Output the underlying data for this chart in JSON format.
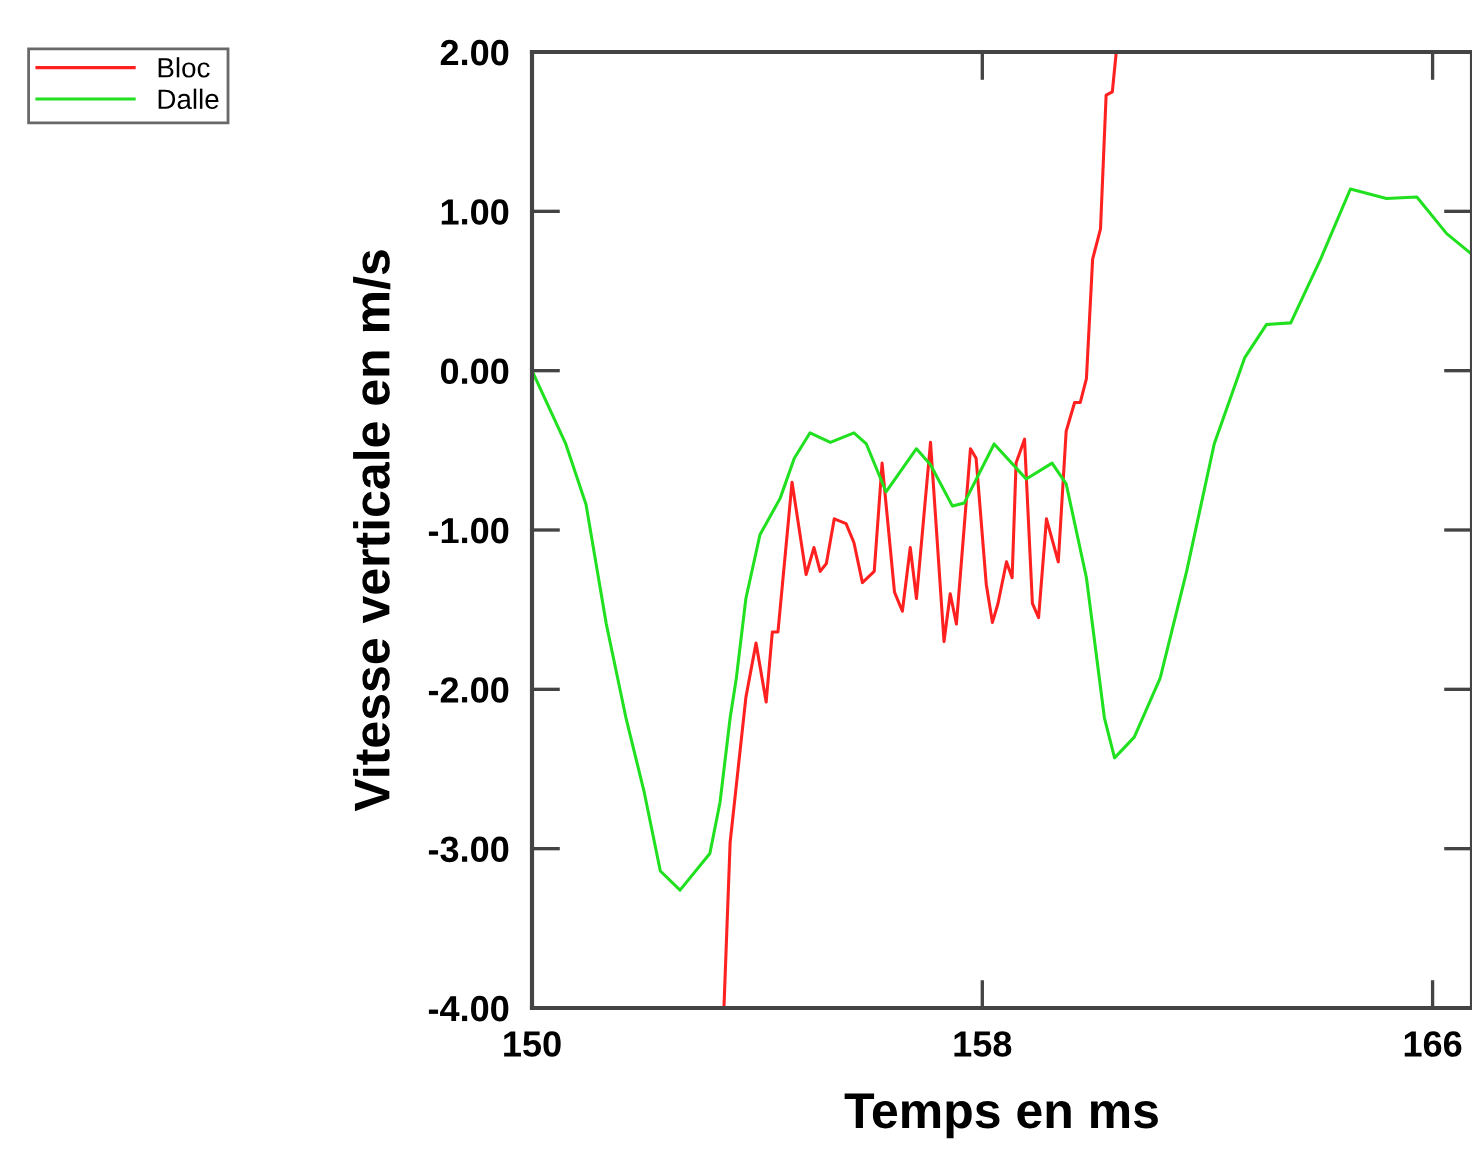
{
  "chart_data": {
    "type": "line",
    "xlabel": "Temps en ms",
    "ylabel": "Vitesse verticale en m/s",
    "xlim": [
      150,
      166.7
    ],
    "ylim": [
      -4,
      2
    ],
    "xticks": [
      150,
      158,
      166
    ],
    "yticks": [
      {
        "value": -4,
        "label": "-4.00"
      },
      {
        "value": -3,
        "label": "-3.00"
      },
      {
        "value": -2,
        "label": "-2.00"
      },
      {
        "value": -1,
        "label": "-1.00"
      },
      {
        "value": 0,
        "label": "0.00"
      },
      {
        "value": 1,
        "label": "1.00"
      },
      {
        "value": 2,
        "label": "2.00"
      }
    ],
    "grid": false,
    "legend": "top left",
    "marker": "none",
    "line_style": "solid",
    "series": [
      {
        "name": "Bloc",
        "color": "#ff2020",
        "x": [
          153.41,
          153.52,
          153.8,
          153.98,
          154.16,
          154.27,
          154.37,
          154.62,
          154.87,
          155.01,
          155.12,
          155.23,
          155.37,
          155.58,
          155.72,
          155.87,
          156.08,
          156.22,
          156.44,
          156.58,
          156.72,
          156.83,
          157.08,
          157.32,
          157.43,
          157.54,
          157.79,
          157.89,
          158.07,
          158.18,
          158.28,
          158.43,
          158.53,
          158.6,
          158.75,
          158.89,
          159.0,
          159.14,
          159.35,
          159.49,
          159.64,
          159.74,
          159.85,
          159.96,
          160.1,
          160.2,
          160.31,
          160.38
        ],
        "values": [
          -4.0,
          -2.96,
          -2.05,
          -1.71,
          -2.08,
          -1.64,
          -1.64,
          -0.7,
          -1.28,
          -1.11,
          -1.26,
          -1.21,
          -0.93,
          -0.96,
          -1.08,
          -1.33,
          -1.26,
          -0.58,
          -1.39,
          -1.51,
          -1.11,
          -1.43,
          -0.45,
          -1.7,
          -1.4,
          -1.59,
          -0.49,
          -0.55,
          -1.34,
          -1.58,
          -1.46,
          -1.2,
          -1.3,
          -0.58,
          -0.43,
          -1.46,
          -1.55,
          -0.93,
          -1.2,
          -0.38,
          -0.2,
          -0.2,
          -0.05,
          0.7,
          0.89,
          1.73,
          1.75,
          2.0
        ]
      },
      {
        "name": "Dalle",
        "color": "#20e020",
        "x": [
          150.0,
          150.6,
          150.96,
          151.32,
          151.67,
          151.99,
          152.28,
          152.63,
          153.16,
          153.34,
          153.52,
          153.63,
          153.8,
          154.05,
          154.41,
          154.66,
          154.94,
          155.3,
          155.72,
          155.94,
          156.29,
          156.83,
          157.08,
          157.47,
          157.68,
          158.21,
          158.78,
          159.24,
          159.49,
          159.85,
          160.17,
          160.35,
          160.7,
          161.16,
          161.63,
          162.12,
          162.66,
          163.05,
          163.48,
          164.01,
          164.54,
          165.18,
          165.72,
          166.25,
          166.7
        ],
        "values": [
          0.0,
          -0.46,
          -0.84,
          -1.59,
          -2.18,
          -2.64,
          -3.14,
          -3.26,
          -3.03,
          -2.71,
          -2.18,
          -1.93,
          -1.43,
          -1.03,
          -0.8,
          -0.55,
          -0.39,
          -0.45,
          -0.39,
          -0.46,
          -0.76,
          -0.49,
          -0.59,
          -0.85,
          -0.83,
          -0.46,
          -0.68,
          -0.58,
          -0.71,
          -1.3,
          -2.18,
          -2.43,
          -2.3,
          -1.93,
          -1.26,
          -0.46,
          0.08,
          0.29,
          0.3,
          0.7,
          1.14,
          1.08,
          1.09,
          0.86,
          0.73
        ]
      }
    ]
  }
}
